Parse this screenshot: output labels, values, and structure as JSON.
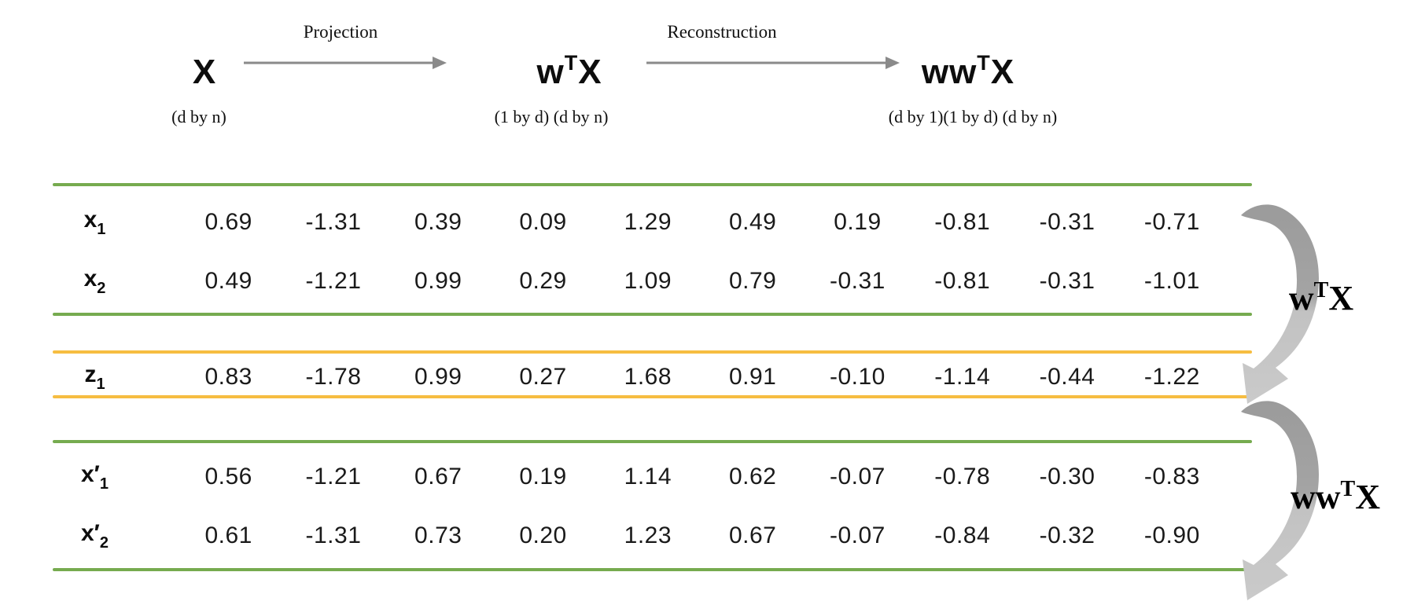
{
  "title_flow": {
    "stages": [
      {
        "base1": "X",
        "sup": "",
        "base2": "",
        "dims": "(d by n)"
      },
      {
        "base1": "w",
        "sup": "T",
        "base2": "X",
        "dims": "(1 by d) (d by n)"
      },
      {
        "base1": "ww",
        "sup": "T",
        "base2": "X",
        "dims": "(d by 1)(1 by d) (d by n)"
      }
    ],
    "arrow_labels": [
      "Projection",
      "Reconstruction"
    ]
  },
  "matrix": {
    "rows": [
      {
        "base": "x",
        "prime": "",
        "sub": "1",
        "group": "original",
        "values": [
          "0.69",
          "-1.31",
          "0.39",
          "0.09",
          "1.29",
          "0.49",
          "0.19",
          "-0.81",
          "-0.31",
          "-0.71"
        ]
      },
      {
        "base": "x",
        "prime": "",
        "sub": "2",
        "group": "original",
        "values": [
          "0.49",
          "-1.21",
          "0.99",
          "0.29",
          "1.09",
          "0.79",
          "-0.31",
          "-0.81",
          "-0.31",
          "-1.01"
        ]
      },
      {
        "base": "z",
        "prime": "",
        "sub": "1",
        "group": "projected",
        "values": [
          "0.83",
          "-1.78",
          "0.99",
          "0.27",
          "1.68",
          "0.91",
          "-0.10",
          "-1.14",
          "-0.44",
          "-1.22"
        ]
      },
      {
        "base": "x",
        "prime": "′",
        "sub": "1",
        "group": "reconstructed",
        "values": [
          "0.56",
          "-1.21",
          "0.67",
          "0.19",
          "1.14",
          "0.62",
          "-0.07",
          "-0.78",
          "-0.30",
          "-0.83"
        ]
      },
      {
        "base": "x",
        "prime": "′",
        "sub": "2",
        "group": "reconstructed",
        "values": [
          "0.61",
          "-1.31",
          "0.73",
          "0.20",
          "1.23",
          "0.67",
          "-0.07",
          "-0.84",
          "-0.32",
          "-0.90"
        ]
      }
    ]
  },
  "side_labels": [
    {
      "base1": "w",
      "sup": "T",
      "base2": "X"
    },
    {
      "base1": "ww",
      "sup": "T",
      "base2": "X"
    }
  ],
  "colors": {
    "green_rule": "#76AB4F",
    "orange_rule": "#F6BD41",
    "flow_arrow_gray": "#8A8A8A",
    "curve_arrow_dark": "#9E9E9E",
    "curve_arrow_light": "#C6C6C6",
    "text": "#111111"
  }
}
